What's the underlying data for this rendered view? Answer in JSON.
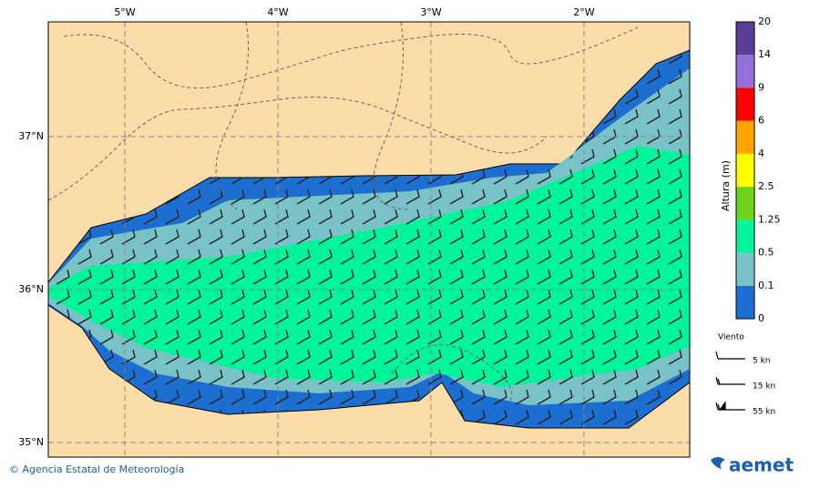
{
  "map": {
    "lon_ticks": [
      "5°W",
      "4°W",
      "3°W",
      "2°W"
    ],
    "lat_ticks": [
      "37°N",
      "36°N",
      "35°N"
    ]
  },
  "colorbar": {
    "title": "Altura (m)",
    "levels": [
      "0",
      "0.1",
      "0.5",
      "1.25",
      "2.5",
      "4",
      "6",
      "9",
      "14",
      "20"
    ],
    "colors": [
      "#1c6fd0",
      "#79c2c8",
      "#00f59a",
      "#6fd21c",
      "#ffff00",
      "#ffa500",
      "#ff0000",
      "#9370db",
      "#5b3f96"
    ]
  },
  "legend": {
    "title": "Viento",
    "items": [
      "5 kn",
      "15 kn",
      "55 kn"
    ]
  },
  "footer": {
    "credit": "© Agencia Estatal de Meteorología",
    "logo": "aemet"
  }
}
